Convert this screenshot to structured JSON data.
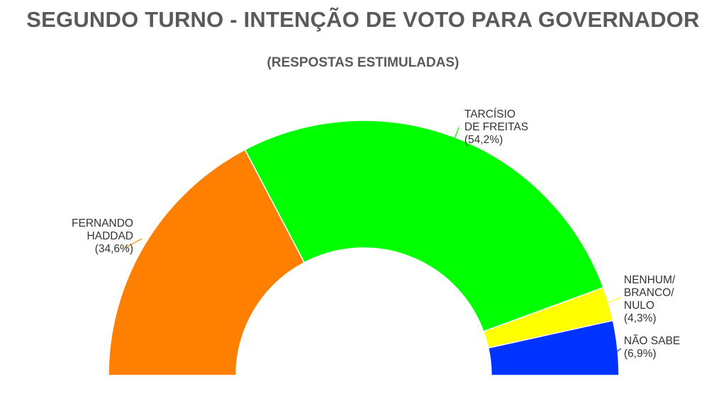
{
  "chart_data": {
    "type": "pie",
    "variant": "half-donut",
    "title": "SEGUNDO TURNO - INTENÇÃO DE VOTO PARA GOVERNADOR",
    "subtitle": "(RESPOSTAS ESTIMULADAS)",
    "unit": "%",
    "slices": [
      {
        "name": "FERNANDO HADDAD",
        "value": 34.6,
        "value_label": "(34,6%)",
        "color": "#ff7f00",
        "label_lines": [
          "FERNANDO",
          "HADDAD",
          "(34,6%)"
        ]
      },
      {
        "name": "TARCÍSIO DE FREITAS",
        "value": 54.2,
        "value_label": "(54,2%)",
        "color": "#00ff00",
        "label_lines": [
          "TARCÍSIO",
          "DE FREITAS",
          "(54,2%)"
        ]
      },
      {
        "name": "NENHUM/ BRANCO/ NULO",
        "value": 4.3,
        "value_label": "(4,3%)",
        "color": "#ffff00",
        "label_lines": [
          "NENHUM/",
          "BRANCO/",
          "NULO",
          "(4,3%)"
        ]
      },
      {
        "name": "NÃO SABE",
        "value": 6.9,
        "value_label": "(6,9%)",
        "color": "#0033ff",
        "label_lines": [
          "NÃO SABE",
          "(6,9%)"
        ]
      }
    ],
    "legend": "none"
  }
}
